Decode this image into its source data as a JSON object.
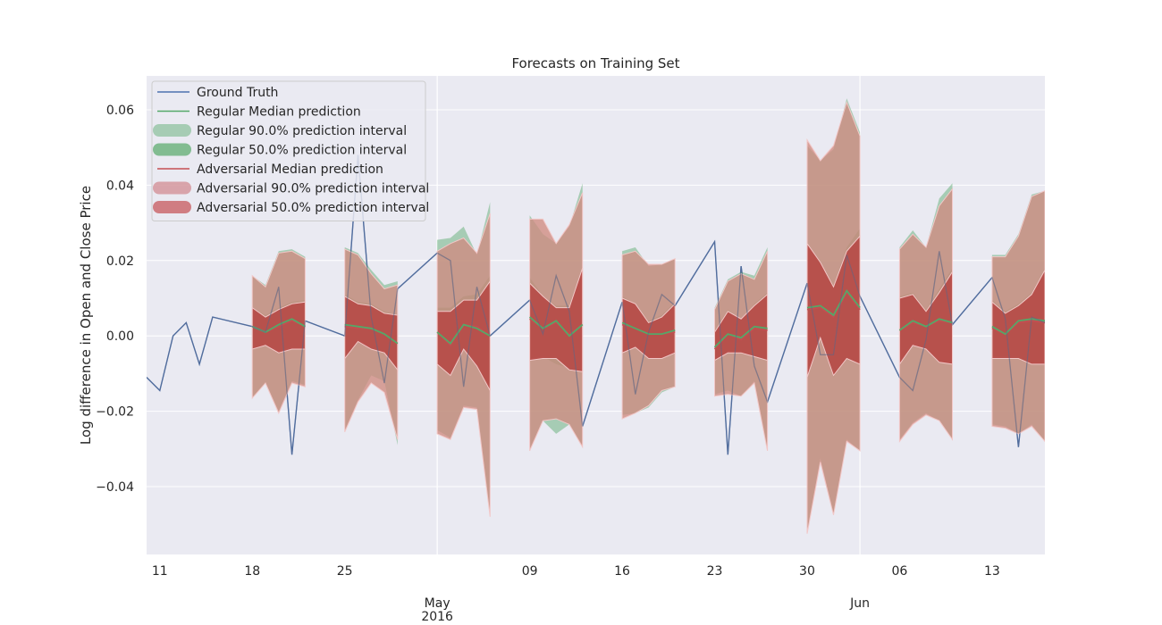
{
  "chart_data": {
    "type": "line",
    "title": "Forecasts on Training Set",
    "xlabel": "",
    "ylabel": "Log difference in Open and Close Price",
    "x_unit": "date (2016)",
    "xlim": [
      "2016-04-10",
      "2016-06-17"
    ],
    "ylim": [
      -0.058,
      0.069
    ],
    "x_ticks": [
      {
        "date": "2016-04-11",
        "label": "11"
      },
      {
        "date": "2016-04-18",
        "label": "18"
      },
      {
        "date": "2016-04-25",
        "label": "25"
      },
      {
        "date": "2016-05-02",
        "label": "May",
        "sublabel": "2016"
      },
      {
        "date": "2016-05-09",
        "label": "09"
      },
      {
        "date": "2016-05-16",
        "label": "16"
      },
      {
        "date": "2016-05-23",
        "label": "23"
      },
      {
        "date": "2016-05-30",
        "label": "30"
      },
      {
        "date": "2016-06-03",
        "label": "Jun"
      },
      {
        "date": "2016-06-06",
        "label": "06"
      },
      {
        "date": "2016-06-13",
        "label": "13"
      }
    ],
    "y_ticks": [
      {
        "value": 0.06,
        "label": "0.06"
      },
      {
        "value": 0.04,
        "label": "0.04"
      },
      {
        "value": 0.02,
        "label": "0.02"
      },
      {
        "value": 0.0,
        "label": "0.00"
      },
      {
        "value": -0.02,
        "label": "−0.02"
      },
      {
        "value": -0.04,
        "label": "−0.04"
      }
    ],
    "grid": true,
    "legend_position": "upper-left",
    "legend": [
      {
        "label": "Ground Truth",
        "kind": "line",
        "color": "#4c72b0"
      },
      {
        "label": "Regular Median prediction",
        "kind": "line",
        "color": "#55a868"
      },
      {
        "label": "Regular 90.0% prediction interval",
        "kind": "band",
        "color": "#55a868",
        "opacity": 0.45
      },
      {
        "label": "Regular 50.0% prediction interval",
        "kind": "band",
        "color": "#55a868",
        "opacity": 0.7
      },
      {
        "label": "Adversarial Median prediction",
        "kind": "line",
        "color": "#c44e52"
      },
      {
        "label": "Adversarial 90.0% prediction interval",
        "kind": "band",
        "color": "#c44e52",
        "opacity": 0.45
      },
      {
        "label": "Adversarial 50.0% prediction interval",
        "kind": "band",
        "color": "#c44e52",
        "opacity": 0.7
      }
    ],
    "ground_truth": {
      "name": "Ground Truth",
      "color": "#4c72b0",
      "points": [
        [
          "2016-04-10",
          -0.011
        ],
        [
          "2016-04-11",
          -0.0145
        ],
        [
          "2016-04-12",
          0.0
        ],
        [
          "2016-04-13",
          0.0035
        ],
        [
          "2016-04-14",
          -0.0075
        ],
        [
          "2016-04-15",
          0.005
        ],
        [
          "2016-04-18",
          0.0025
        ],
        [
          "2016-04-19",
          0.001
        ],
        [
          "2016-04-20",
          0.013
        ],
        [
          "2016-04-21",
          -0.0315
        ],
        [
          "2016-04-22",
          0.004
        ],
        [
          "2016-04-25",
          0.0
        ],
        [
          "2016-04-26",
          0.048
        ],
        [
          "2016-04-27",
          0.005
        ],
        [
          "2016-04-28",
          -0.0125
        ],
        [
          "2016-04-29",
          0.0125
        ],
        [
          "2016-05-02",
          0.022
        ],
        [
          "2016-05-03",
          0.02
        ],
        [
          "2016-05-04",
          -0.0135
        ],
        [
          "2016-05-05",
          0.013
        ],
        [
          "2016-05-06",
          0.0
        ],
        [
          "2016-05-09",
          0.0095
        ],
        [
          "2016-05-10",
          0.0005
        ],
        [
          "2016-05-11",
          0.016
        ],
        [
          "2016-05-12",
          0.0065
        ],
        [
          "2016-05-13",
          -0.024
        ],
        [
          "2016-05-16",
          0.009
        ],
        [
          "2016-05-17",
          -0.0155
        ],
        [
          "2016-05-18",
          0.001
        ],
        [
          "2016-05-19",
          0.011
        ],
        [
          "2016-05-20",
          0.008
        ],
        [
          "2016-05-23",
          0.025
        ],
        [
          "2016-05-24",
          -0.0315
        ],
        [
          "2016-05-25",
          0.0185
        ],
        [
          "2016-05-26",
          -0.008
        ],
        [
          "2016-05-27",
          -0.0175
        ],
        [
          "2016-05-30",
          0.014
        ],
        [
          "2016-05-31",
          -0.005
        ],
        [
          "2016-06-01",
          -0.005
        ],
        [
          "2016-06-02",
          0.0215
        ],
        [
          "2016-06-03",
          0.0105
        ],
        [
          "2016-06-06",
          -0.011
        ],
        [
          "2016-06-07",
          -0.0145
        ],
        [
          "2016-06-08",
          -0.001
        ],
        [
          "2016-06-09",
          0.0225
        ],
        [
          "2016-06-10",
          0.003
        ],
        [
          "2016-06-13",
          0.0155
        ],
        [
          "2016-06-14",
          0.0045
        ],
        [
          "2016-06-15",
          -0.0295
        ],
        [
          "2016-06-16",
          0.005
        ],
        [
          "2016-06-17",
          0.0035
        ]
      ]
    },
    "forecast_windows": [
      {
        "dates": [
          "2016-04-18",
          "2016-04-19",
          "2016-04-20",
          "2016-04-21",
          "2016-04-22"
        ],
        "regular": {
          "median": [
            0.0025,
            0.001,
            0.003,
            0.0045,
            0.0025
          ],
          "lo90": [
            -0.0165,
            -0.0125,
            -0.02,
            -0.012,
            -0.013
          ],
          "hi90": [
            0.016,
            0.0135,
            0.0225,
            0.023,
            0.021
          ],
          "lo50": [
            -0.0035,
            -0.002,
            -0.004,
            -0.003,
            -0.003
          ],
          "hi50": [
            0.0075,
            0.0055,
            0.0075,
            0.009,
            0.0095
          ]
        },
        "adversarial": {
          "median": [
            0.0025,
            0.001,
            0.0025,
            0.004,
            0.0025
          ],
          "lo90": [
            -0.0165,
            -0.0125,
            -0.0205,
            -0.0125,
            -0.0135
          ],
          "hi90": [
            0.016,
            0.013,
            0.022,
            0.0225,
            0.0205
          ],
          "lo50": [
            -0.0035,
            -0.0025,
            -0.0045,
            -0.0035,
            -0.0035
          ],
          "hi50": [
            0.0075,
            0.005,
            0.007,
            0.0085,
            0.009
          ]
        }
      },
      {
        "dates": [
          "2016-04-25",
          "2016-04-26",
          "2016-04-27",
          "2016-04-28",
          "2016-04-29"
        ],
        "regular": {
          "median": [
            0.003,
            0.0025,
            0.002,
            0.0005,
            -0.002
          ],
          "lo90": [
            -0.025,
            -0.017,
            -0.0105,
            -0.012,
            -0.029
          ],
          "hi90": [
            0.0235,
            0.022,
            0.0175,
            0.0135,
            0.0145
          ],
          "lo50": [
            -0.006,
            -0.001,
            -0.003,
            -0.004,
            -0.009
          ],
          "hi50": [
            0.011,
            0.009,
            0.0085,
            0.0065,
            0.0055
          ]
        },
        "adversarial": {
          "median": [
            0.0025,
            0.002,
            0.002,
            0.0005,
            -0.002
          ],
          "lo90": [
            -0.0255,
            -0.0175,
            -0.0125,
            -0.015,
            -0.0275
          ],
          "hi90": [
            0.023,
            0.0215,
            0.0165,
            0.0125,
            0.0135
          ],
          "lo50": [
            -0.006,
            -0.0015,
            -0.0035,
            -0.0045,
            -0.009
          ],
          "hi50": [
            0.0105,
            0.0085,
            0.008,
            0.006,
            0.0055
          ]
        }
      },
      {
        "dates": [
          "2016-05-02",
          "2016-05-03",
          "2016-05-04",
          "2016-05-05",
          "2016-05-06"
        ],
        "regular": {
          "median": [
            0.001,
            -0.002,
            0.003,
            0.002,
            0.0
          ],
          "lo90": [
            -0.025,
            -0.027,
            -0.0185,
            -0.019,
            -0.0475
          ],
          "hi90": [
            0.0255,
            0.026,
            0.029,
            0.0215,
            0.0355
          ],
          "lo50": [
            -0.0075,
            -0.0105,
            -0.003,
            -0.0075,
            -0.0145
          ],
          "hi50": [
            0.0075,
            0.0075,
            0.0105,
            0.011,
            0.016
          ]
        },
        "adversarial": {
          "median": [
            0.001,
            -0.0025,
            0.003,
            0.0025,
            0.0
          ],
          "lo90": [
            -0.026,
            -0.0275,
            -0.019,
            -0.0195,
            -0.048
          ],
          "hi90": [
            0.0225,
            0.0245,
            0.026,
            0.022,
            0.0325
          ],
          "lo50": [
            -0.0075,
            -0.0105,
            -0.0035,
            -0.008,
            -0.0145
          ],
          "hi50": [
            0.0065,
            0.0065,
            0.0095,
            0.0095,
            0.0145
          ]
        }
      },
      {
        "dates": [
          "2016-05-09",
          "2016-05-10",
          "2016-05-11",
          "2016-05-12",
          "2016-05-13"
        ],
        "regular": {
          "median": [
            0.005,
            0.002,
            0.004,
            0.0,
            0.003
          ],
          "lo90": [
            -0.03,
            -0.0225,
            -0.026,
            -0.0235,
            -0.029
          ],
          "hi90": [
            0.032,
            0.027,
            0.0245,
            0.029,
            0.0405
          ],
          "lo50": [
            -0.006,
            -0.0055,
            -0.0075,
            -0.0085,
            -0.0095
          ],
          "hi50": [
            0.0155,
            0.0105,
            0.008,
            0.008,
            0.0185
          ]
        },
        "adversarial": {
          "median": [
            0.0045,
            0.002,
            0.0035,
            0.0005,
            0.003
          ],
          "lo90": [
            -0.0305,
            -0.0225,
            -0.022,
            -0.0235,
            -0.0295
          ],
          "hi90": [
            0.031,
            0.031,
            0.0245,
            0.0295,
            0.038
          ],
          "lo50": [
            -0.0065,
            -0.006,
            -0.006,
            -0.009,
            -0.0095
          ],
          "hi50": [
            0.014,
            0.0105,
            0.0075,
            0.0075,
            0.018
          ]
        }
      },
      {
        "dates": [
          "2016-05-16",
          "2016-05-17",
          "2016-05-18",
          "2016-05-19",
          "2016-05-20"
        ],
        "regular": {
          "median": [
            0.0035,
            0.002,
            0.0005,
            0.0005,
            0.0015
          ],
          "lo90": [
            -0.021,
            -0.0205,
            -0.019,
            -0.015,
            -0.0135
          ],
          "hi90": [
            0.0225,
            0.0235,
            0.0185,
            0.019,
            0.0205
          ],
          "lo50": [
            -0.0045,
            -0.0025,
            -0.0055,
            -0.006,
            -0.004
          ],
          "hi50": [
            0.0105,
            0.0085,
            0.004,
            0.0055,
            0.009
          ]
        },
        "adversarial": {
          "median": [
            0.003,
            0.002,
            0.0005,
            0.0005,
            0.001
          ],
          "lo90": [
            -0.022,
            -0.0205,
            -0.0185,
            -0.0145,
            -0.0135
          ],
          "hi90": [
            0.0215,
            0.0225,
            0.019,
            0.019,
            0.0205
          ],
          "lo50": [
            -0.0045,
            -0.003,
            -0.006,
            -0.006,
            -0.0045
          ],
          "hi50": [
            0.01,
            0.0085,
            0.0035,
            0.005,
            0.0085
          ]
        }
      },
      {
        "dates": [
          "2016-05-23",
          "2016-05-24",
          "2016-05-25",
          "2016-05-26",
          "2016-05-27"
        ],
        "regular": {
          "median": [
            -0.003,
            0.0005,
            -0.0005,
            0.0025,
            0.002
          ],
          "lo90": [
            -0.0155,
            -0.0145,
            -0.016,
            -0.012,
            -0.0305
          ],
          "hi90": [
            0.0075,
            0.015,
            0.017,
            0.016,
            0.0235
          ],
          "lo50": [
            -0.0065,
            -0.004,
            -0.0045,
            -0.005,
            -0.0065
          ],
          "hi50": [
            0.0015,
            0.007,
            0.004,
            0.0085,
            0.0115
          ]
        },
        "adversarial": {
          "median": [
            -0.0035,
            0.0005,
            -0.001,
            0.002,
            0.0015
          ],
          "lo90": [
            -0.016,
            -0.0155,
            -0.016,
            -0.0125,
            -0.0305
          ],
          "hi90": [
            0.007,
            0.0145,
            0.0165,
            0.015,
            0.0225
          ],
          "lo50": [
            -0.0065,
            -0.0045,
            -0.0045,
            -0.0055,
            -0.0065
          ],
          "hi50": [
            0.001,
            0.0065,
            0.0045,
            0.008,
            0.011
          ]
        }
      },
      {
        "dates": [
          "2016-05-30",
          "2016-05-31",
          "2016-06-01",
          "2016-06-02",
          "2016-06-03"
        ],
        "regular": {
          "median": [
            0.0075,
            0.008,
            0.0055,
            0.012,
            0.0075
          ],
          "lo90": [
            -0.052,
            -0.0325,
            -0.047,
            -0.0275,
            -0.0305
          ],
          "hi90": [
            0.0505,
            0.0465,
            0.0495,
            0.063,
            0.054
          ],
          "lo50": [
            -0.0105,
            0.0,
            -0.011,
            -0.006,
            -0.0075
          ],
          "hi50": [
            0.0245,
            0.0195,
            0.0135,
            0.0235,
            0.0285
          ]
        },
        "adversarial": {
          "median": [
            0.007,
            0.0075,
            0.005,
            0.0115,
            0.007
          ],
          "lo90": [
            -0.0525,
            -0.0335,
            -0.0475,
            -0.028,
            -0.0305
          ],
          "hi90": [
            0.052,
            0.0465,
            0.0505,
            0.062,
            0.053
          ],
          "lo50": [
            -0.011,
            -0.0005,
            -0.0105,
            -0.006,
            -0.0075
          ],
          "hi50": [
            0.0245,
            0.0195,
            0.013,
            0.0225,
            0.0265
          ]
        }
      },
      {
        "dates": [
          "2016-06-06",
          "2016-06-07",
          "2016-06-08",
          "2016-06-09",
          "2016-06-10"
        ],
        "regular": {
          "median": [
            0.0015,
            0.004,
            0.0025,
            0.0045,
            0.0035
          ],
          "lo90": [
            -0.0275,
            -0.023,
            -0.0205,
            -0.0225,
            -0.0275
          ],
          "hi90": [
            0.0235,
            0.028,
            0.0235,
            0.0365,
            0.0405
          ],
          "lo50": [
            -0.0075,
            -0.002,
            -0.003,
            -0.007,
            -0.0075
          ],
          "hi50": [
            0.0105,
            0.0115,
            0.007,
            0.0125,
            0.018
          ]
        },
        "adversarial": {
          "median": [
            0.0015,
            0.0035,
            0.0025,
            0.004,
            0.0035
          ],
          "lo90": [
            -0.028,
            -0.0235,
            -0.021,
            -0.0225,
            -0.0275
          ],
          "hi90": [
            0.023,
            0.027,
            0.0235,
            0.0345,
            0.039
          ],
          "lo50": [
            -0.0075,
            -0.0025,
            -0.0035,
            -0.007,
            -0.0075
          ],
          "hi50": [
            0.01,
            0.011,
            0.0065,
            0.0115,
            0.017
          ]
        }
      },
      {
        "dates": [
          "2016-06-13",
          "2016-06-14",
          "2016-06-15",
          "2016-06-16",
          "2016-06-17"
        ],
        "regular": {
          "median": [
            0.0025,
            0.0005,
            0.004,
            0.0045,
            0.004
          ],
          "lo90": [
            -0.0235,
            -0.024,
            -0.026,
            -0.0235,
            -0.028
          ],
          "hi90": [
            0.0215,
            0.0215,
            0.027,
            0.0375,
            0.0385
          ],
          "lo50": [
            -0.0055,
            -0.0055,
            -0.006,
            -0.0075,
            -0.0075
          ],
          "hi50": [
            0.0095,
            0.0065,
            0.0085,
            0.0115,
            0.018
          ]
        },
        "adversarial": {
          "median": [
            0.002,
            0.0005,
            0.0035,
            0.004,
            0.0035
          ],
          "lo90": [
            -0.024,
            -0.0245,
            -0.026,
            -0.024,
            -0.028
          ],
          "hi90": [
            0.021,
            0.021,
            0.0265,
            0.037,
            0.0385
          ],
          "lo50": [
            -0.006,
            -0.006,
            -0.006,
            -0.0075,
            -0.0075
          ],
          "hi50": [
            0.009,
            0.006,
            0.008,
            0.011,
            0.0175
          ]
        }
      }
    ]
  }
}
